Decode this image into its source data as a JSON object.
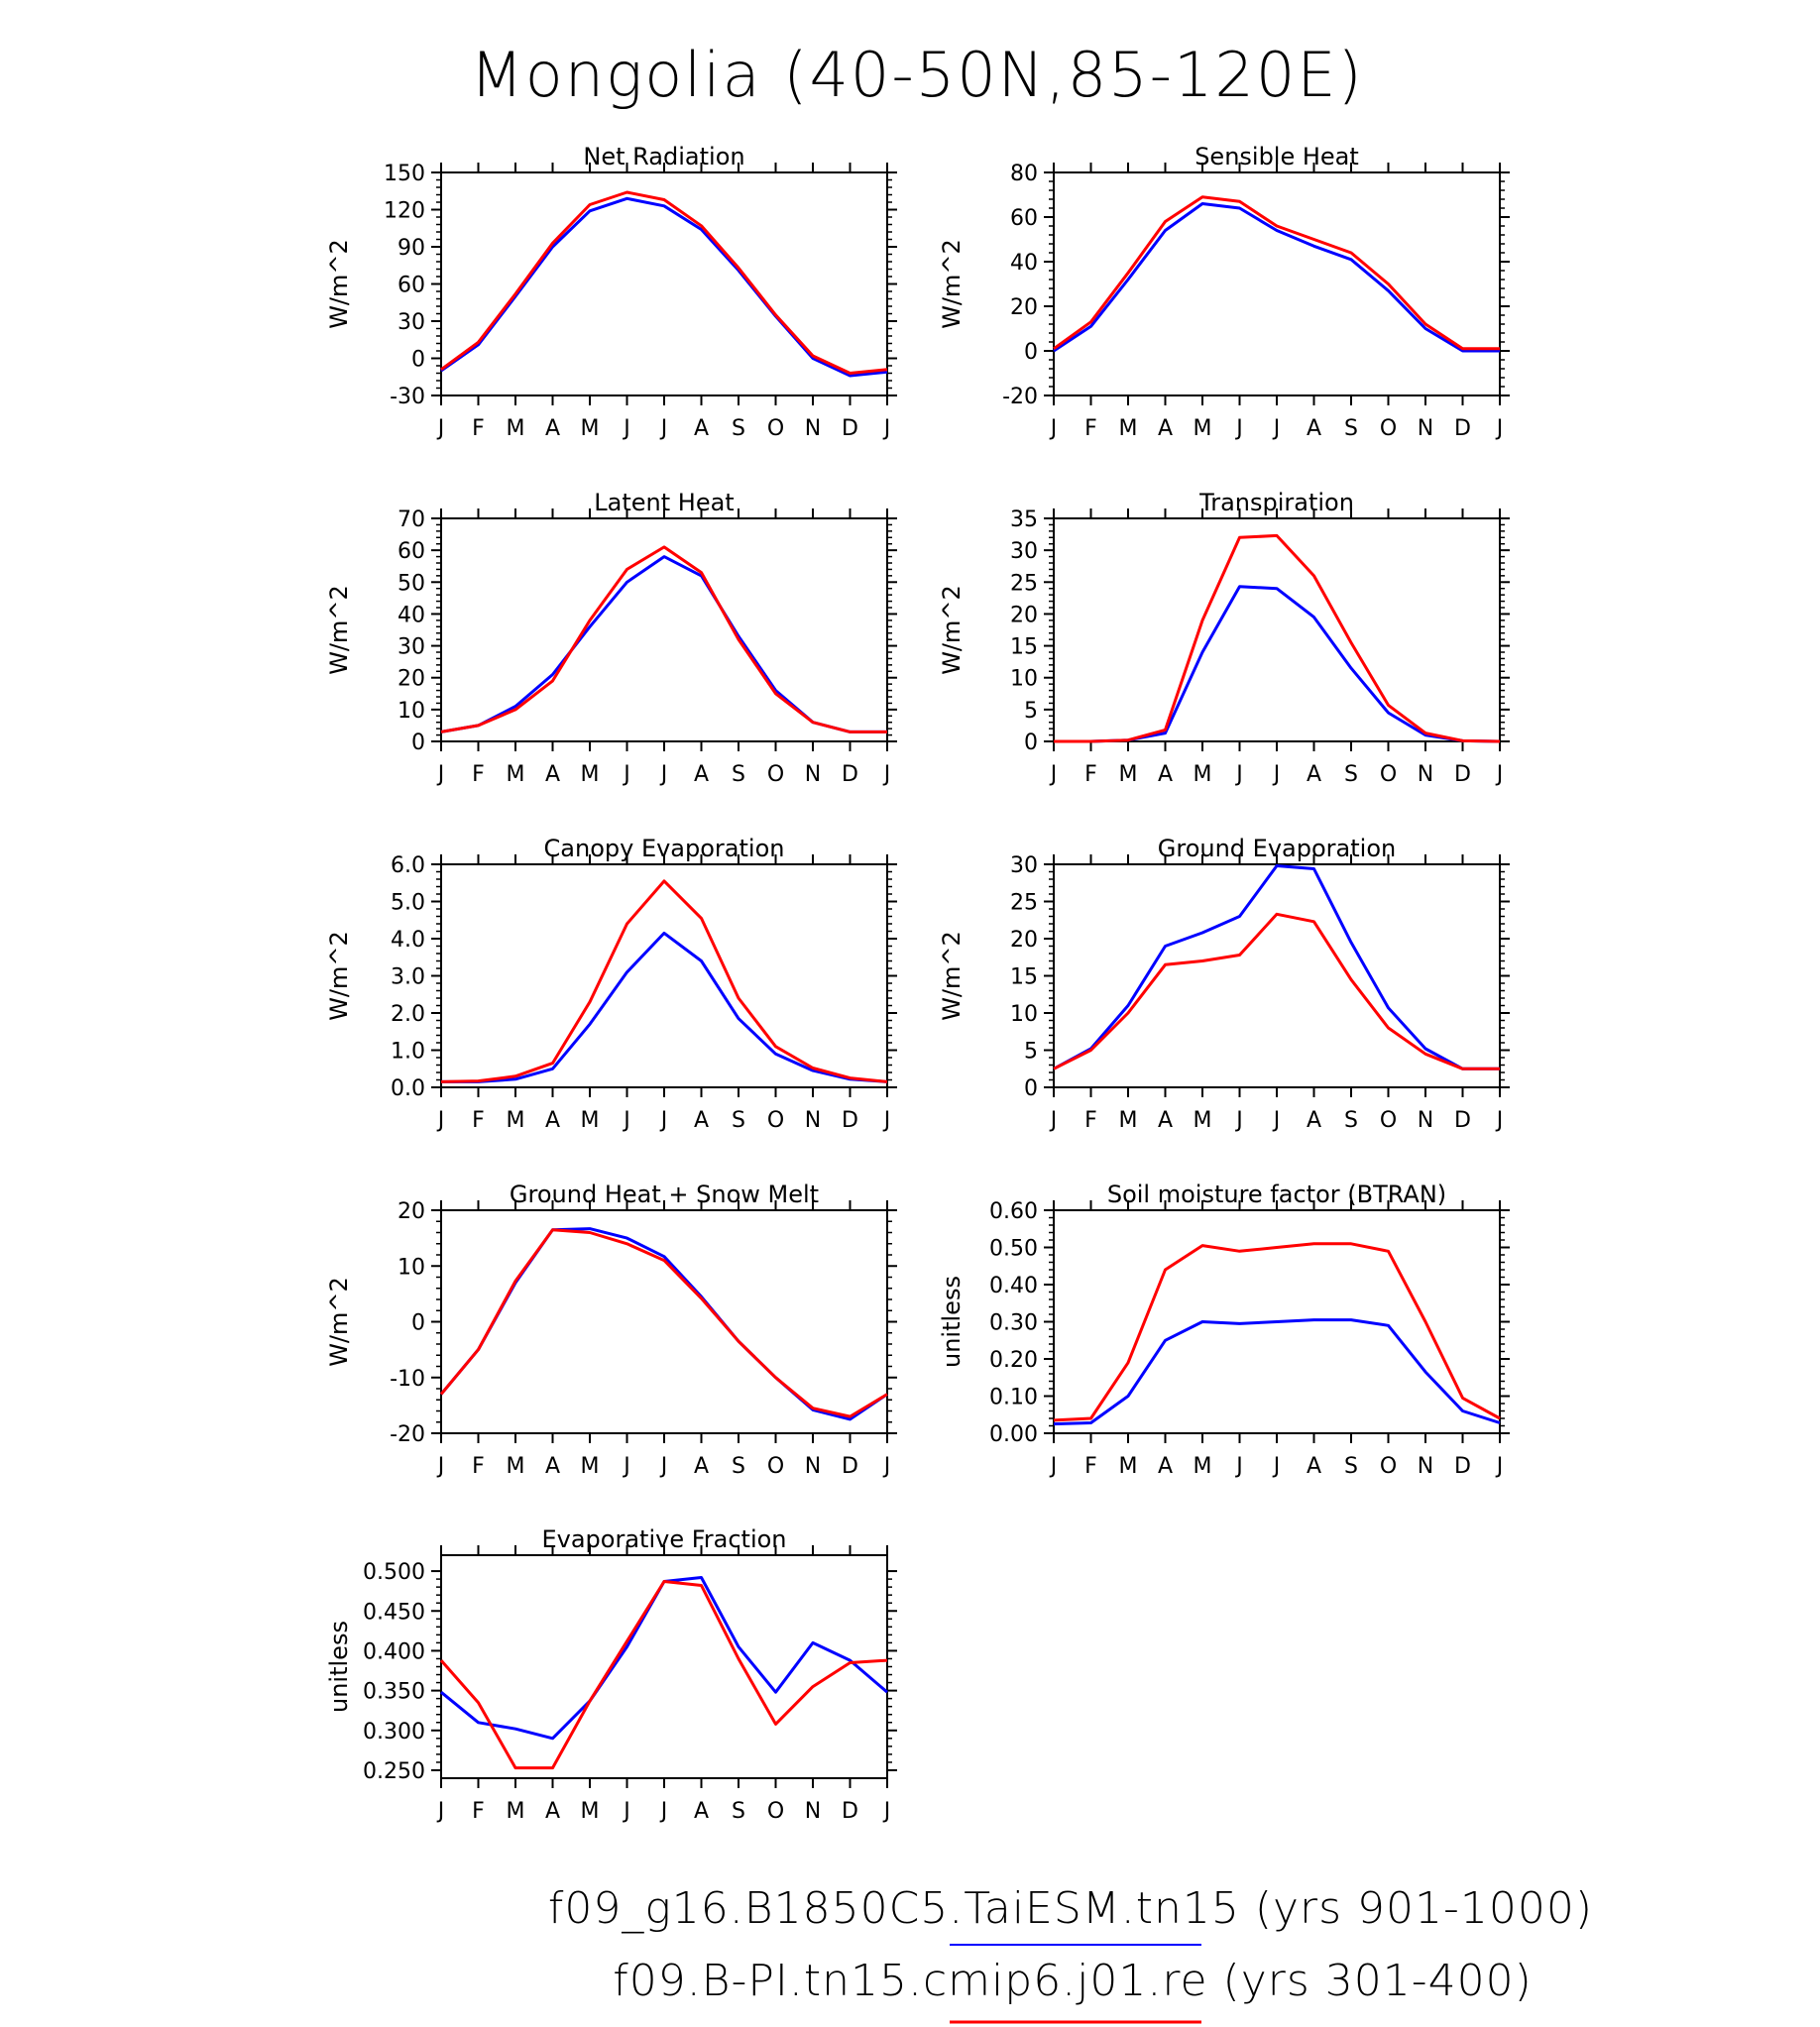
{
  "figure": {
    "title": "Mongolia (40-50N,85-120E)",
    "months": [
      "J",
      "F",
      "M",
      "A",
      "M",
      "J",
      "J",
      "A",
      "S",
      "O",
      "N",
      "D",
      "J"
    ],
    "colors": {
      "case1": "#0000ff",
      "case2": "#ff0000"
    }
  },
  "legend": [
    {
      "label": "f09_g16.B1850C5.TaiESM.tn15 (yrs 901-1000)",
      "color": "#0000ff"
    },
    {
      "label": "f09.B-PI.tn15.cmip6.j01.re (yrs 301-400)",
      "color": "#ff0000"
    }
  ],
  "chart_data": [
    {
      "type": "line",
      "title": "Net Radiation",
      "ylabel": "W/m^2",
      "ylim": [
        -30,
        150
      ],
      "yticks": [
        -30,
        0,
        30,
        60,
        90,
        120,
        150
      ],
      "ytick_labels": [
        "-30",
        "0",
        "30",
        "60",
        "90",
        "120",
        "150"
      ],
      "x": [
        "J",
        "F",
        "M",
        "A",
        "M",
        "J",
        "J",
        "A",
        "S",
        "O",
        "N",
        "D",
        "J"
      ],
      "series": [
        {
          "color": "#0000ff",
          "values": [
            -10,
            11,
            50,
            90,
            119,
            129,
            123,
            104,
            71,
            34,
            0,
            -14,
            -11
          ]
        },
        {
          "color": "#ff0000",
          "values": [
            -9,
            13,
            52,
            93,
            124,
            134,
            128,
            107,
            73,
            35,
            2,
            -12,
            -9
          ]
        }
      ]
    },
    {
      "type": "line",
      "title": "Sensible Heat",
      "ylabel": "W/m^2",
      "ylim": [
        -20,
        80
      ],
      "yticks": [
        -20,
        0,
        20,
        40,
        60,
        80
      ],
      "ytick_labels": [
        "-20",
        "0",
        "20",
        "40",
        "60",
        "80"
      ],
      "x": [
        "J",
        "F",
        "M",
        "A",
        "M",
        "J",
        "J",
        "A",
        "S",
        "O",
        "N",
        "D",
        "J"
      ],
      "series": [
        {
          "color": "#0000ff",
          "values": [
            0,
            11,
            32,
            54,
            66,
            64,
            54,
            47,
            41,
            27,
            10,
            0,
            0
          ]
        },
        {
          "color": "#ff0000",
          "values": [
            1,
            13,
            35,
            58,
            69,
            67,
            56,
            50,
            44,
            30,
            12,
            1,
            1
          ]
        }
      ]
    },
    {
      "type": "line",
      "title": "Latent Heat",
      "ylabel": "W/m^2",
      "ylim": [
        0,
        70
      ],
      "yticks": [
        0,
        10,
        20,
        30,
        40,
        50,
        60,
        70
      ],
      "ytick_labels": [
        "0",
        "10",
        "20",
        "30",
        "40",
        "50",
        "60",
        "70"
      ],
      "x": [
        "J",
        "F",
        "M",
        "A",
        "M",
        "J",
        "J",
        "A",
        "S",
        "O",
        "N",
        "D",
        "J"
      ],
      "series": [
        {
          "color": "#0000ff",
          "values": [
            3,
            5,
            11,
            21,
            36,
            50,
            58,
            52,
            33,
            16,
            6,
            3,
            3
          ]
        },
        {
          "color": "#ff0000",
          "values": [
            3,
            5,
            10,
            19,
            38,
            54,
            61,
            53,
            32,
            15,
            6,
            3,
            3
          ]
        }
      ]
    },
    {
      "type": "line",
      "title": "Transpiration",
      "ylabel": "W/m^2",
      "ylim": [
        0,
        35
      ],
      "yticks": [
        0,
        5,
        10,
        15,
        20,
        25,
        30,
        35
      ],
      "ytick_labels": [
        "0",
        "5",
        "10",
        "15",
        "20",
        "25",
        "30",
        "35"
      ],
      "x": [
        "J",
        "F",
        "M",
        "A",
        "M",
        "J",
        "J",
        "A",
        "S",
        "O",
        "N",
        "D",
        "J"
      ],
      "series": [
        {
          "color": "#0000ff",
          "values": [
            0,
            0,
            0.2,
            1.3,
            14,
            24.3,
            24,
            19.5,
            11.5,
            4.5,
            1,
            0.1,
            0
          ]
        },
        {
          "color": "#ff0000",
          "values": [
            0,
            0,
            0.2,
            1.8,
            19,
            32,
            32.3,
            26,
            15.5,
            5.7,
            1.3,
            0.1,
            0
          ]
        }
      ]
    },
    {
      "type": "line",
      "title": "Canopy Evaporation",
      "ylabel": "W/m^2",
      "ylim": [
        0,
        6
      ],
      "yticks": [
        0,
        1,
        2,
        3,
        4,
        5,
        6
      ],
      "ytick_labels": [
        "0.0",
        "1.0",
        "2.0",
        "3.0",
        "4.0",
        "5.0",
        "6.0"
      ],
      "x": [
        "J",
        "F",
        "M",
        "A",
        "M",
        "J",
        "J",
        "A",
        "S",
        "O",
        "N",
        "D",
        "J"
      ],
      "series": [
        {
          "color": "#0000ff",
          "values": [
            0.15,
            0.15,
            0.22,
            0.5,
            1.7,
            3.1,
            4.15,
            3.4,
            1.85,
            0.9,
            0.45,
            0.22,
            0.15
          ]
        },
        {
          "color": "#ff0000",
          "values": [
            0.15,
            0.17,
            0.3,
            0.65,
            2.3,
            4.4,
            5.55,
            4.55,
            2.4,
            1.1,
            0.52,
            0.25,
            0.15
          ]
        }
      ]
    },
    {
      "type": "line",
      "title": "Ground Evaporation",
      "ylabel": "W/m^2",
      "ylim": [
        0,
        30
      ],
      "yticks": [
        0,
        5,
        10,
        15,
        20,
        25,
        30
      ],
      "ytick_labels": [
        "0",
        "5",
        "10",
        "15",
        "20",
        "25",
        "30"
      ],
      "x": [
        "J",
        "F",
        "M",
        "A",
        "M",
        "J",
        "J",
        "A",
        "S",
        "O",
        "N",
        "D",
        "J"
      ],
      "series": [
        {
          "color": "#0000ff",
          "values": [
            2.5,
            5.2,
            11,
            19,
            20.8,
            23,
            29.8,
            29.4,
            19.5,
            10.7,
            5.2,
            2.5,
            2.5
          ]
        },
        {
          "color": "#ff0000",
          "values": [
            2.5,
            5,
            10,
            16.5,
            17,
            17.8,
            23.3,
            22.3,
            14.5,
            8,
            4.5,
            2.5,
            2.5
          ]
        }
      ]
    },
    {
      "type": "line",
      "title": "Ground Heat + Snow Melt",
      "ylabel": "W/m^2",
      "ylim": [
        -20,
        20
      ],
      "yticks": [
        -20,
        -10,
        0,
        10,
        20
      ],
      "ytick_labels": [
        "-20",
        "-10",
        "0",
        "10",
        "20"
      ],
      "x": [
        "J",
        "F",
        "M",
        "A",
        "M",
        "J",
        "J",
        "A",
        "S",
        "O",
        "N",
        "D",
        "J"
      ],
      "series": [
        {
          "color": "#0000ff",
          "values": [
            -13,
            -5,
            7,
            16.5,
            16.7,
            15,
            11.7,
            4.5,
            -3.5,
            -10,
            -15.8,
            -17.5,
            -13
          ]
        },
        {
          "color": "#ff0000",
          "values": [
            -13,
            -5,
            7.3,
            16.5,
            16,
            14,
            11,
            4.2,
            -3.5,
            -10,
            -15.5,
            -17,
            -13
          ]
        }
      ]
    },
    {
      "type": "line",
      "title": "Soil moisture factor (BTRAN)",
      "ylabel": "unitless",
      "ylim": [
        0,
        0.6
      ],
      "yticks": [
        0,
        0.1,
        0.2,
        0.3,
        0.4,
        0.5,
        0.6
      ],
      "ytick_labels": [
        "0.00",
        "0.10",
        "0.20",
        "0.30",
        "0.40",
        "0.50",
        "0.60"
      ],
      "x": [
        "J",
        "F",
        "M",
        "A",
        "M",
        "J",
        "J",
        "A",
        "S",
        "O",
        "N",
        "D",
        "J"
      ],
      "series": [
        {
          "color": "#0000ff",
          "values": [
            0.025,
            0.028,
            0.1,
            0.25,
            0.3,
            0.295,
            0.3,
            0.305,
            0.305,
            0.29,
            0.165,
            0.06,
            0.028
          ]
        },
        {
          "color": "#ff0000",
          "values": [
            0.035,
            0.04,
            0.19,
            0.44,
            0.505,
            0.49,
            0.5,
            0.51,
            0.51,
            0.49,
            0.3,
            0.095,
            0.04
          ]
        }
      ]
    },
    {
      "type": "line",
      "title": "Evaporative Fraction",
      "ylabel": "unitless",
      "ylim": [
        0.24,
        0.52
      ],
      "yticks": [
        0.25,
        0.3,
        0.35,
        0.4,
        0.45,
        0.5
      ],
      "ytick_labels": [
        "0.250",
        "0.300",
        "0.350",
        "0.400",
        "0.450",
        "0.500"
      ],
      "x": [
        "J",
        "F",
        "M",
        "A",
        "M",
        "J",
        "J",
        "A",
        "S",
        "O",
        "N",
        "D",
        "J"
      ],
      "series": [
        {
          "color": "#0000ff",
          "values": [
            0.348,
            0.31,
            0.302,
            0.29,
            0.337,
            0.405,
            0.487,
            0.492,
            0.405,
            0.348,
            0.41,
            0.388,
            0.348
          ]
        },
        {
          "color": "#ff0000",
          "values": [
            0.388,
            0.335,
            0.253,
            0.253,
            0.337,
            0.412,
            0.487,
            0.482,
            0.39,
            0.308,
            0.355,
            0.385,
            0.388
          ]
        }
      ]
    }
  ]
}
